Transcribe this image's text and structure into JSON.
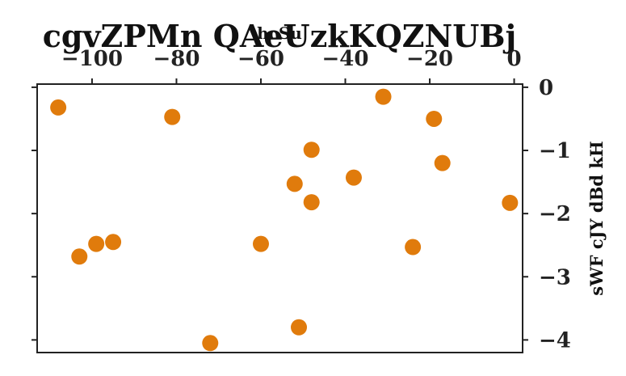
{
  "chart_data": {
    "type": "scatter",
    "title": "cgvZPMn QAeUzkKQZNUBj",
    "xlabel": "hcSu",
    "ylabel": "sWF cJY dBd kH",
    "x_axis_position": "top",
    "y_axis_position": "right",
    "xlim": [
      -113,
      2
    ],
    "ylim": [
      -4.2,
      0.05
    ],
    "x_ticks": [
      -100,
      -80,
      -60,
      -40,
      -20,
      0
    ],
    "y_ticks": [
      0,
      -1,
      -2,
      -3,
      -4
    ],
    "x_tick_labels": [
      "−100",
      "−80",
      "−60",
      "−40",
      "−20",
      "0"
    ],
    "y_tick_labels": [
      "0",
      "−1",
      "−2",
      "−3",
      "−4"
    ],
    "grid": false,
    "marker_color": "#e07b0c",
    "x": [
      -108,
      -81,
      -31,
      -19,
      -48,
      -17,
      -52,
      -38,
      -48,
      -1,
      -103,
      -99,
      -95,
      -60,
      -24,
      -72,
      -51
    ],
    "y": [
      -0.32,
      -0.47,
      -0.15,
      -0.5,
      -0.99,
      -1.2,
      -1.53,
      -1.43,
      -1.82,
      -1.83,
      -2.68,
      -2.48,
      -2.45,
      -2.48,
      -2.53,
      -4.05,
      -3.8
    ]
  }
}
